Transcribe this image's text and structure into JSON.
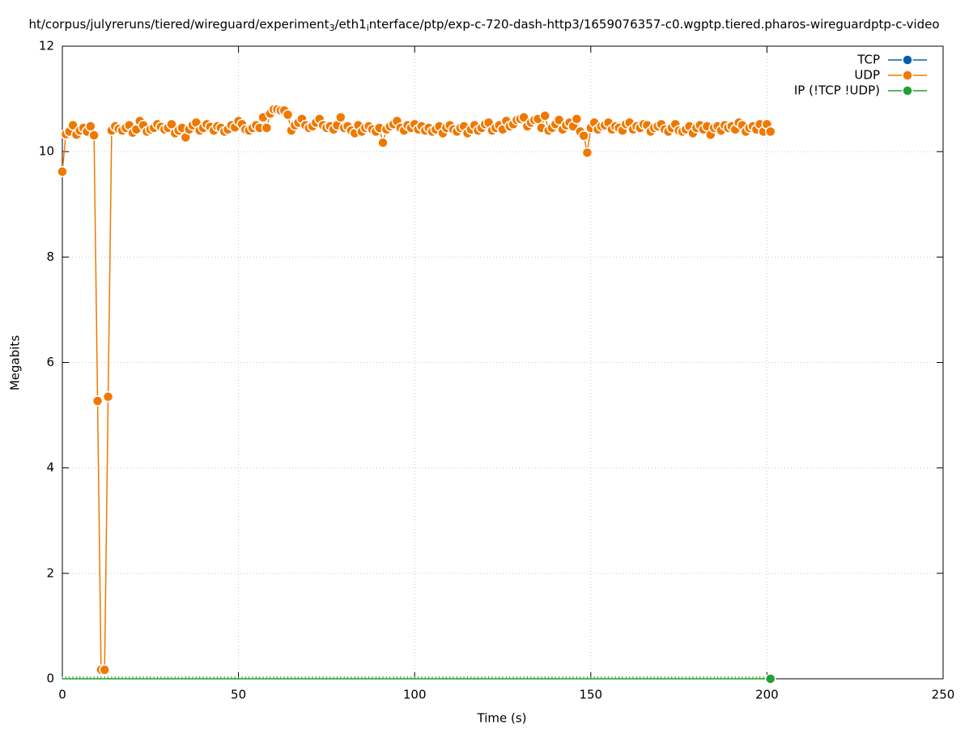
{
  "chart_data": {
    "type": "line",
    "title_parts": [
      {
        "text": "ht/corpus/julyreruns/tiered/wireguard/experiment",
        "sub": false
      },
      {
        "text": "3",
        "sub": true
      },
      {
        "text": "/eth1",
        "sub": false
      },
      {
        "text": "i",
        "sub": true
      },
      {
        "text": "nterface/ptp/exp-c-720-dash-http3/1659076357-c0.wgptp.tiered.pharos-wireguardptp-c-video",
        "sub": false
      }
    ],
    "xlabel": "Time (s)",
    "ylabel": "Megabits",
    "xlim": [
      0,
      250
    ],
    "xticks": [
      0,
      50,
      100,
      150,
      200,
      250
    ],
    "ylim": [
      0,
      12
    ],
    "yticks": [
      0,
      2,
      4,
      6,
      8,
      10,
      12
    ],
    "grid": true,
    "legend": "top-right",
    "x": [
      0,
      1,
      2,
      3,
      4,
      5,
      6,
      7,
      8,
      9,
      10,
      11,
      12,
      13,
      14,
      15,
      16,
      17,
      18,
      19,
      20,
      21,
      22,
      23,
      24,
      25,
      26,
      27,
      28,
      29,
      30,
      31,
      32,
      33,
      34,
      35,
      36,
      37,
      38,
      39,
      40,
      41,
      42,
      43,
      44,
      45,
      46,
      47,
      48,
      49,
      50,
      51,
      52,
      53,
      54,
      55,
      56,
      57,
      58,
      59,
      60,
      61,
      62,
      63,
      64,
      65,
      66,
      67,
      68,
      69,
      70,
      71,
      72,
      73,
      74,
      75,
      76,
      77,
      78,
      79,
      80,
      81,
      82,
      83,
      84,
      85,
      86,
      87,
      88,
      89,
      90,
      91,
      92,
      93,
      94,
      95,
      96,
      97,
      98,
      99,
      100,
      101,
      102,
      103,
      104,
      105,
      106,
      107,
      108,
      109,
      110,
      111,
      112,
      113,
      114,
      115,
      116,
      117,
      118,
      119,
      120,
      121,
      122,
      123,
      124,
      125,
      126,
      127,
      128,
      129,
      130,
      131,
      132,
      133,
      134,
      135,
      136,
      137,
      138,
      139,
      140,
      141,
      142,
      143,
      144,
      145,
      146,
      147,
      148,
      149,
      150,
      151,
      152,
      153,
      154,
      155,
      156,
      157,
      158,
      159,
      160,
      161,
      162,
      163,
      164,
      165,
      166,
      167,
      168,
      169,
      170,
      171,
      172,
      173,
      174,
      175,
      176,
      177,
      178,
      179,
      180,
      181,
      182,
      183,
      184,
      185,
      186,
      187,
      188,
      189,
      190,
      191,
      192,
      193,
      194,
      195,
      196,
      197,
      198,
      199,
      200,
      201
    ],
    "series": [
      {
        "name": "TCP",
        "color": "#0060ad"
      },
      {
        "name": "UDP",
        "color": "#f07800",
        "values": [
          9.62,
          10.33,
          10.38,
          10.5,
          10.32,
          10.4,
          10.45,
          10.38,
          10.48,
          10.31,
          5.27,
          0.17,
          0.17,
          5.35,
          10.4,
          10.48,
          10.43,
          10.4,
          10.45,
          10.5,
          10.36,
          10.42,
          10.58,
          10.5,
          10.38,
          10.42,
          10.45,
          10.52,
          10.47,
          10.42,
          10.45,
          10.52,
          10.35,
          10.4,
          10.45,
          10.27,
          10.42,
          10.5,
          10.55,
          10.4,
          10.45,
          10.52,
          10.47,
          10.4,
          10.48,
          10.45,
          10.38,
          10.42,
          10.5,
          10.46,
          10.58,
          10.52,
          10.42,
          10.4,
          10.45,
          10.5,
          10.45,
          10.65,
          10.45,
          10.72,
          10.8,
          10.8,
          10.78,
          10.78,
          10.7,
          10.4,
          10.5,
          10.55,
          10.62,
          10.5,
          10.45,
          10.48,
          10.55,
          10.62,
          10.5,
          10.45,
          10.48,
          10.42,
          10.5,
          10.65,
          10.45,
          10.48,
          10.4,
          10.35,
          10.5,
          10.38,
          10.45,
          10.48,
          10.42,
          10.38,
          10.45,
          10.17,
          10.42,
          10.48,
          10.52,
          10.58,
          10.45,
          10.4,
          10.5,
          10.45,
          10.52,
          10.42,
          10.48,
          10.4,
          10.45,
          10.38,
          10.42,
          10.48,
          10.35,
          10.45,
          10.5,
          10.42,
          10.38,
          10.45,
          10.48,
          10.35,
          10.42,
          10.5,
          10.4,
          10.45,
          10.52,
          10.55,
          10.4,
          10.45,
          10.5,
          10.42,
          10.58,
          10.48,
          10.52,
          10.6,
          10.62,
          10.65,
          10.48,
          10.55,
          10.6,
          10.62,
          10.45,
          10.68,
          10.4,
          10.45,
          10.52,
          10.6,
          10.42,
          10.5,
          10.55,
          10.48,
          10.62,
          10.38,
          10.3,
          9.98,
          10.45,
          10.55,
          10.42,
          10.48,
          10.5,
          10.55,
          10.42,
          10.48,
          10.45,
          10.4,
          10.52,
          10.55,
          10.42,
          10.48,
          10.45,
          10.52,
          10.5,
          10.38,
          10.45,
          10.48,
          10.52,
          10.42,
          10.38,
          10.45,
          10.52,
          10.4,
          10.38,
          10.42,
          10.48,
          10.35,
          10.45,
          10.5,
          10.42,
          10.48,
          10.32,
          10.45,
          10.48,
          10.4,
          10.5,
          10.45,
          10.48,
          10.42,
          10.55,
          10.5,
          10.38,
          10.45,
          10.48,
          10.42,
          10.52,
          10.38,
          10.52,
          10.38
        ]
      },
      {
        "name": "IP (!TCP  !UDP)",
        "color": "#20a030",
        "values": [
          0,
          0,
          0,
          0,
          0,
          0,
          0,
          0,
          0,
          0,
          0,
          0,
          0,
          0,
          0,
          0,
          0,
          0,
          0,
          0,
          0,
          0,
          0,
          0,
          0,
          0,
          0,
          0,
          0,
          0,
          0,
          0,
          0,
          0,
          0,
          0,
          0,
          0,
          0,
          0,
          0,
          0,
          0,
          0,
          0,
          0,
          0,
          0,
          0,
          0,
          0,
          0,
          0,
          0,
          0,
          0,
          0,
          0,
          0,
          0,
          0,
          0,
          0,
          0,
          0,
          0,
          0,
          0,
          0,
          0,
          0,
          0,
          0,
          0,
          0,
          0,
          0,
          0,
          0,
          0,
          0,
          0,
          0,
          0,
          0,
          0,
          0,
          0,
          0,
          0,
          0,
          0,
          0,
          0,
          0,
          0,
          0,
          0,
          0,
          0,
          0,
          0,
          0,
          0,
          0,
          0,
          0,
          0,
          0,
          0,
          0,
          0,
          0,
          0,
          0,
          0,
          0,
          0,
          0,
          0,
          0,
          0,
          0,
          0,
          0,
          0,
          0,
          0,
          0,
          0,
          0,
          0,
          0,
          0,
          0,
          0,
          0,
          0,
          0,
          0,
          0,
          0,
          0,
          0,
          0,
          0,
          0,
          0,
          0,
          0,
          0,
          0,
          0,
          0,
          0,
          0,
          0,
          0,
          0,
          0,
          0,
          0,
          0,
          0,
          0,
          0,
          0,
          0,
          0,
          0,
          0,
          0,
          0,
          0,
          0,
          0,
          0,
          0,
          0,
          0,
          0,
          0,
          0,
          0,
          0,
          0,
          0,
          0,
          0,
          0,
          0,
          0,
          0,
          0,
          0,
          0,
          0,
          0,
          0,
          0,
          0,
          0
        ]
      }
    ]
  }
}
